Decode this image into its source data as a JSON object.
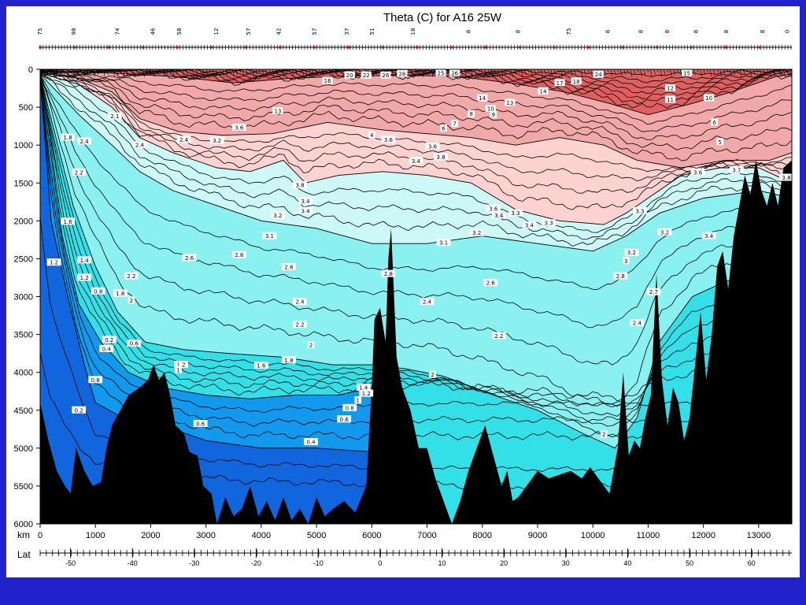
{
  "slide": {
    "background": "#2222cc"
  },
  "chart_data": {
    "type": "contour-section",
    "title": "Theta (C) for A16 25W",
    "ylabel": "",
    "xlabel": "km",
    "second_axis_label": "Lat",
    "depth_axis": {
      "min": 0,
      "max": 6000,
      "reversed": true,
      "ticks": [
        0,
        500,
        1000,
        1500,
        2000,
        2500,
        3000,
        3500,
        4000,
        4500,
        5000,
        5500,
        6000
      ]
    },
    "distance_axis": {
      "min": 0,
      "max": 13600,
      "ticks": [
        0,
        1000,
        2000,
        3000,
        4000,
        5000,
        6000,
        7000,
        8000,
        9000,
        10000,
        11000,
        12000,
        13000
      ]
    },
    "latitude_ticks": [
      {
        "lat": -50,
        "label": "-50",
        "km": 550
      },
      {
        "lat": -40,
        "label": "-40",
        "km": 1670
      },
      {
        "lat": -30,
        "label": "-30",
        "km": 2790
      },
      {
        "lat": -20,
        "label": "-20",
        "km": 3910
      },
      {
        "lat": -10,
        "label": "-10",
        "km": 5030
      },
      {
        "lat": 0,
        "label": "0",
        "km": 6150
      },
      {
        "lat": 10,
        "label": "10",
        "km": 7270
      },
      {
        "lat": 20,
        "label": "20",
        "km": 8390
      },
      {
        "lat": 30,
        "label": "30",
        "km": 9510
      },
      {
        "lat": 40,
        "label": "40",
        "km": 10630
      },
      {
        "lat": 50,
        "label": "50",
        "km": 11750
      },
      {
        "lat": 60,
        "label": "60",
        "km": 12870
      }
    ],
    "station_labels": [
      {
        "km": 30,
        "label": "75"
      },
      {
        "km": 640,
        "label": "98"
      },
      {
        "km": 1430,
        "label": "74"
      },
      {
        "km": 2070,
        "label": "46"
      },
      {
        "km": 2550,
        "label": "58"
      },
      {
        "km": 3220,
        "label": "12"
      },
      {
        "km": 3800,
        "label": "57"
      },
      {
        "km": 4350,
        "label": "42"
      },
      {
        "km": 5000,
        "label": "57"
      },
      {
        "km": 5580,
        "label": "37"
      },
      {
        "km": 6040,
        "label": "51"
      },
      {
        "km": 6780,
        "label": "18"
      },
      {
        "km": 7780,
        "label": "8"
      },
      {
        "km": 8680,
        "label": "8"
      },
      {
        "km": 9600,
        "label": "75"
      },
      {
        "km": 10300,
        "label": "8"
      },
      {
        "km": 10900,
        "label": "8"
      },
      {
        "km": 11380,
        "label": "8"
      },
      {
        "km": 11900,
        "label": "8"
      },
      {
        "km": 12450,
        "label": "8"
      },
      {
        "km": 13100,
        "label": "8"
      },
      {
        "km": 13550,
        "label": "0"
      }
    ],
    "color_bands": [
      {
        "range": "> 10",
        "color": "#e06060"
      },
      {
        "range": "4 - 10",
        "color": "#f0a8a8"
      },
      {
        "range": "3 - 4",
        "color": "#ffd2d2"
      },
      {
        "range": "2.8 - 3",
        "color": "#ccf8f8"
      },
      {
        "range": "2 - 2.8",
        "color": "#8af0f0"
      },
      {
        "range": "1.2 - 2",
        "color": "#33e0e8"
      },
      {
        "range": "0.4 - 1.2",
        "color": "#1199ee"
      },
      {
        "range": "< 0.4",
        "color": "#1166dd"
      }
    ],
    "contour_labels": [
      {
        "km": 4300,
        "depth": 550,
        "label": "13"
      },
      {
        "km": 5200,
        "depth": 150,
        "label": "16"
      },
      {
        "km": 5600,
        "depth": 80,
        "label": "20"
      },
      {
        "km": 5900,
        "depth": 80,
        "label": "22"
      },
      {
        "km": 6250,
        "depth": 80,
        "label": "26"
      },
      {
        "km": 6550,
        "depth": 60,
        "label": "28"
      },
      {
        "km": 7250,
        "depth": 50,
        "label": "25"
      },
      {
        "km": 7500,
        "depth": 50,
        "label": "26"
      },
      {
        "km": 9400,
        "depth": 180,
        "label": "17"
      },
      {
        "km": 9700,
        "depth": 160,
        "label": "18"
      },
      {
        "km": 10100,
        "depth": 70,
        "label": "24"
      },
      {
        "km": 11700,
        "depth": 50,
        "label": "15"
      },
      {
        "km": 8000,
        "depth": 380,
        "label": "14"
      },
      {
        "km": 8500,
        "depth": 440,
        "label": "13"
      },
      {
        "km": 9100,
        "depth": 290,
        "label": "14"
      },
      {
        "km": 11400,
        "depth": 250,
        "label": "12"
      },
      {
        "km": 11400,
        "depth": 400,
        "label": "11"
      },
      {
        "km": 12100,
        "depth": 380,
        "label": "10"
      },
      {
        "km": 8150,
        "depth": 520,
        "label": "10"
      },
      {
        "km": 8200,
        "depth": 600,
        "label": "9"
      },
      {
        "km": 7800,
        "depth": 590,
        "label": "8"
      },
      {
        "km": 7500,
        "depth": 720,
        "label": "7"
      },
      {
        "km": 7300,
        "depth": 780,
        "label": "6"
      },
      {
        "km": 12200,
        "depth": 700,
        "label": "6"
      },
      {
        "km": 12300,
        "depth": 960,
        "label": "5"
      },
      {
        "km": 6000,
        "depth": 870,
        "label": "4"
      },
      {
        "km": 6300,
        "depth": 930,
        "label": "3.6"
      },
      {
        "km": 7100,
        "depth": 1020,
        "label": "3.6"
      },
      {
        "km": 6800,
        "depth": 1210,
        "label": "3.4"
      },
      {
        "km": 7250,
        "depth": 1160,
        "label": "3.8"
      },
      {
        "km": 8200,
        "depth": 1840,
        "label": "3.6"
      },
      {
        "km": 8300,
        "depth": 1930,
        "label": "3.4"
      },
      {
        "km": 8600,
        "depth": 1900,
        "label": "3.3"
      },
      {
        "km": 8850,
        "depth": 2060,
        "label": "3.4"
      },
      {
        "km": 9200,
        "depth": 2030,
        "label": "3.3"
      },
      {
        "km": 7900,
        "depth": 2160,
        "label": "3.2"
      },
      {
        "km": 7300,
        "depth": 2290,
        "label": "3.1"
      },
      {
        "km": 6300,
        "depth": 2700,
        "label": "2.8"
      },
      {
        "km": 4700,
        "depth": 1530,
        "label": "3.8"
      },
      {
        "km": 4800,
        "depth": 1740,
        "label": "3.4"
      },
      {
        "km": 4800,
        "depth": 1870,
        "label": "3.4"
      },
      {
        "km": 4300,
        "depth": 1930,
        "label": "3.2"
      },
      {
        "km": 4150,
        "depth": 2200,
        "label": "3.1"
      },
      {
        "km": 3600,
        "depth": 2450,
        "label": "2.8"
      },
      {
        "km": 2700,
        "depth": 2490,
        "label": "2.6"
      },
      {
        "km": 4500,
        "depth": 2610,
        "label": "2.6"
      },
      {
        "km": 8150,
        "depth": 2820,
        "label": "2.6"
      },
      {
        "km": 4700,
        "depth": 3070,
        "label": "2.4"
      },
      {
        "km": 7000,
        "depth": 3070,
        "label": "2.4"
      },
      {
        "km": 4700,
        "depth": 3370,
        "label": "2.2"
      },
      {
        "km": 8300,
        "depth": 3520,
        "label": "2.2"
      },
      {
        "km": 4900,
        "depth": 3640,
        "label": "2"
      },
      {
        "km": 4500,
        "depth": 3840,
        "label": "1.8"
      },
      {
        "km": 4000,
        "depth": 3910,
        "label": "1.6"
      },
      {
        "km": 5850,
        "depth": 4200,
        "label": "1.4"
      },
      {
        "km": 5900,
        "depth": 4280,
        "label": "1.2"
      },
      {
        "km": 5750,
        "depth": 4370,
        "label": "1"
      },
      {
        "km": 5600,
        "depth": 4470,
        "label": "0.8"
      },
      {
        "km": 5500,
        "depth": 4620,
        "label": "0.6"
      },
      {
        "km": 4900,
        "depth": 4920,
        "label": "0.4"
      },
      {
        "km": 1700,
        "depth": 3620,
        "label": "0.6"
      },
      {
        "km": 1250,
        "depth": 3570,
        "label": "0.2"
      },
      {
        "km": 1200,
        "depth": 3690,
        "label": "0.4"
      },
      {
        "km": 1000,
        "depth": 4100,
        "label": "0.8"
      },
      {
        "km": 700,
        "depth": 4500,
        "label": "0.2"
      },
      {
        "km": 2900,
        "depth": 4680,
        "label": "0.6"
      },
      {
        "km": 2550,
        "depth": 3900,
        "label": "1.2"
      },
      {
        "km": 2500,
        "depth": 3970,
        "label": "1"
      },
      {
        "km": 1450,
        "depth": 2960,
        "label": "1.8"
      },
      {
        "km": 1650,
        "depth": 2730,
        "label": "2.2"
      },
      {
        "km": 1650,
        "depth": 3050,
        "label": "2"
      },
      {
        "km": 1050,
        "depth": 2930,
        "label": "0.8"
      },
      {
        "km": 800,
        "depth": 2520,
        "label": "1.4"
      },
      {
        "km": 800,
        "depth": 2750,
        "label": "1.2"
      },
      {
        "km": 250,
        "depth": 2550,
        "label": "1.2"
      },
      {
        "km": 500,
        "depth": 2010,
        "label": "1.6"
      },
      {
        "km": 800,
        "depth": 950,
        "label": "2.4"
      },
      {
        "km": 500,
        "depth": 900,
        "label": "1.8"
      },
      {
        "km": 700,
        "depth": 1360,
        "label": "2.2"
      },
      {
        "km": 1350,
        "depth": 620,
        "label": "2.1"
      },
      {
        "km": 1800,
        "depth": 1000,
        "label": "2.4"
      },
      {
        "km": 2600,
        "depth": 930,
        "label": "2.4"
      },
      {
        "km": 3200,
        "depth": 940,
        "label": "3.2"
      },
      {
        "km": 3600,
        "depth": 770,
        "label": "3.6"
      },
      {
        "km": 10850,
        "depth": 1870,
        "label": "3.3"
      },
      {
        "km": 11300,
        "depth": 2150,
        "label": "3.2"
      },
      {
        "km": 12100,
        "depth": 2200,
        "label": "3.4"
      },
      {
        "km": 11900,
        "depth": 1360,
        "label": "3.6"
      },
      {
        "km": 10700,
        "depth": 2420,
        "label": "3.2"
      },
      {
        "km": 10600,
        "depth": 2530,
        "label": "3"
      },
      {
        "km": 10500,
        "depth": 2730,
        "label": "2.8"
      },
      {
        "km": 11100,
        "depth": 2940,
        "label": "2.7"
      },
      {
        "km": 10800,
        "depth": 3350,
        "label": "2.4"
      },
      {
        "km": 12600,
        "depth": 1330,
        "label": "3.7"
      },
      {
        "km": 13500,
        "depth": 1430,
        "label": "3.8"
      },
      {
        "km": 7100,
        "depth": 4030,
        "label": "2"
      },
      {
        "km": 10200,
        "depth": 4820,
        "label": "2"
      }
    ],
    "bathymetry": [
      [
        0,
        4400
      ],
      [
        150,
        4900
      ],
      [
        300,
        5300
      ],
      [
        450,
        5500
      ],
      [
        550,
        5600
      ],
      [
        650,
        5000
      ],
      [
        800,
        5300
      ],
      [
        950,
        5500
      ],
      [
        1100,
        5450
      ],
      [
        1200,
        5000
      ],
      [
        1300,
        4700
      ],
      [
        1450,
        4500
      ],
      [
        1600,
        4300
      ],
      [
        1800,
        4200
      ],
      [
        1950,
        4100
      ],
      [
        2050,
        3900
      ],
      [
        2150,
        4100
      ],
      [
        2250,
        4000
      ],
      [
        2350,
        4300
      ],
      [
        2450,
        4700
      ],
      [
        2600,
        4800
      ],
      [
        2700,
        5050
      ],
      [
        2850,
        5100
      ],
      [
        2950,
        5500
      ],
      [
        3100,
        5600
      ],
      [
        3200,
        6000
      ],
      [
        3350,
        5650
      ],
      [
        3500,
        5900
      ],
      [
        3650,
        5800
      ],
      [
        3800,
        5500
      ],
      [
        3950,
        5900
      ],
      [
        4100,
        5700
      ],
      [
        4250,
        5950
      ],
      [
        4400,
        5650
      ],
      [
        4550,
        5950
      ],
      [
        4700,
        5800
      ],
      [
        4850,
        6000
      ],
      [
        5000,
        5650
      ],
      [
        5150,
        5900
      ],
      [
        5300,
        5800
      ],
      [
        5500,
        5700
      ],
      [
        5700,
        5850
      ],
      [
        5900,
        5500
      ],
      [
        6000,
        4200
      ],
      [
        6050,
        3300
      ],
      [
        6150,
        3150
      ],
      [
        6250,
        3600
      ],
      [
        6300,
        2500
      ],
      [
        6350,
        2100
      ],
      [
        6450,
        3800
      ],
      [
        6550,
        4200
      ],
      [
        6700,
        4500
      ],
      [
        6850,
        5000
      ],
      [
        7000,
        5000
      ],
      [
        7150,
        5400
      ],
      [
        7300,
        5700
      ],
      [
        7450,
        6000
      ],
      [
        7600,
        5700
      ],
      [
        7750,
        5300
      ],
      [
        7900,
        5000
      ],
      [
        8050,
        4700
      ],
      [
        8200,
        5100
      ],
      [
        8350,
        5500
      ],
      [
        8450,
        5300
      ],
      [
        8550,
        5700
      ],
      [
        8650,
        5650
      ],
      [
        8800,
        5500
      ],
      [
        9000,
        5300
      ],
      [
        9200,
        5400
      ],
      [
        9400,
        5350
      ],
      [
        9600,
        5300
      ],
      [
        9800,
        5400
      ],
      [
        9950,
        5250
      ],
      [
        10100,
        5400
      ],
      [
        10300,
        5600
      ],
      [
        10450,
        5000
      ],
      [
        10550,
        4000
      ],
      [
        10650,
        5100
      ],
      [
        10750,
        4900
      ],
      [
        10850,
        5000
      ],
      [
        10950,
        4600
      ],
      [
        11050,
        4300
      ],
      [
        11150,
        2700
      ],
      [
        11250,
        4100
      ],
      [
        11350,
        4700
      ],
      [
        11450,
        4200
      ],
      [
        11550,
        4400
      ],
      [
        11650,
        4900
      ],
      [
        11750,
        4600
      ],
      [
        11850,
        3900
      ],
      [
        11950,
        3200
      ],
      [
        12050,
        4100
      ],
      [
        12150,
        3500
      ],
      [
        12250,
        2600
      ],
      [
        12350,
        2400
      ],
      [
        12450,
        2900
      ],
      [
        12550,
        2200
      ],
      [
        12650,
        1800
      ],
      [
        12750,
        1400
      ],
      [
        12850,
        1650
      ],
      [
        12950,
        1200
      ],
      [
        13050,
        1600
      ],
      [
        13150,
        1800
      ],
      [
        13250,
        1500
      ],
      [
        13350,
        1800
      ],
      [
        13450,
        1300
      ],
      [
        13600,
        1200
      ]
    ]
  }
}
